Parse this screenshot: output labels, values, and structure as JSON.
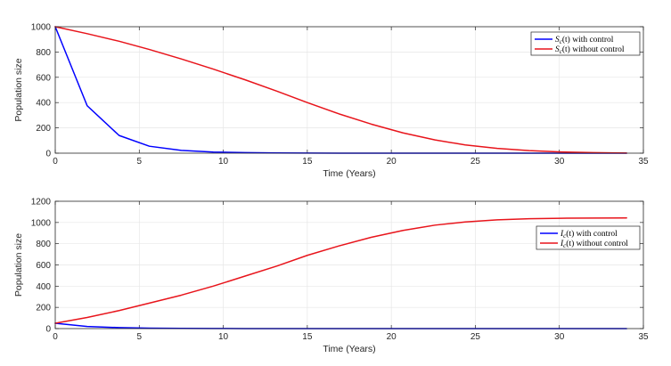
{
  "chart_data": [
    {
      "type": "line",
      "title": "",
      "xlabel": "Time (Years)",
      "ylabel": "Population size",
      "xlim": [
        0,
        35
      ],
      "ylim": [
        0,
        1000
      ],
      "xticks": [
        0,
        5,
        10,
        15,
        20,
        25,
        30,
        35
      ],
      "yticks": [
        0,
        200,
        400,
        600,
        800,
        1000
      ],
      "grid": true,
      "legend_position": "top-right",
      "series": [
        {
          "name": "S_c(t) with control",
          "legend_symbol": "S",
          "legend_subscript": "c",
          "legend_arg": "(t)",
          "legend_suffix": " with control",
          "color": "#0000ff",
          "x": [
            0,
            1.9,
            3.8,
            5.6,
            7.5,
            9.4,
            11.3,
            13.2,
            15.0,
            16.9,
            18.8,
            20.7,
            22.6,
            24.4,
            26.3,
            28.2,
            30.1,
            32.0,
            34.0
          ],
          "y": [
            1000,
            375,
            140,
            55,
            22,
            9,
            4,
            2,
            1,
            0,
            0,
            0,
            0,
            0,
            0,
            0,
            0,
            0,
            0
          ]
        },
        {
          "name": "S_c(t) without control",
          "legend_symbol": "S",
          "legend_subscript": "c",
          "legend_arg": "(t)",
          "legend_suffix": " without control",
          "color": "#e8141b",
          "x": [
            0,
            1.9,
            3.8,
            5.6,
            7.5,
            9.4,
            11.3,
            13.2,
            15.0,
            16.9,
            18.8,
            20.7,
            22.6,
            24.4,
            26.3,
            28.2,
            30.1,
            32.0,
            34.0
          ],
          "y": [
            1000,
            945,
            885,
            820,
            745,
            665,
            580,
            490,
            400,
            310,
            230,
            160,
            105,
            65,
            38,
            20,
            10,
            4,
            1
          ]
        }
      ]
    },
    {
      "type": "line",
      "title": "",
      "xlabel": "Time (Years)",
      "ylabel": "Population size",
      "xlim": [
        0,
        35
      ],
      "ylim": [
        0,
        1200
      ],
      "xticks": [
        0,
        5,
        10,
        15,
        20,
        25,
        30,
        35
      ],
      "yticks": [
        0,
        200,
        400,
        600,
        800,
        1000,
        1200
      ],
      "grid": true,
      "legend_position": "right",
      "series": [
        {
          "name": "I_c(t) with control",
          "legend_symbol": "I",
          "legend_subscript": "c",
          "legend_arg": "(t)",
          "legend_suffix": " with control",
          "color": "#0000ff",
          "x": [
            0,
            1.9,
            3.8,
            5.6,
            7.5,
            9.4,
            11.3,
            13.2,
            15.0,
            16.9,
            18.8,
            20.7,
            22.6,
            24.4,
            26.3,
            28.2,
            30.1,
            32.0,
            34.0
          ],
          "y": [
            50,
            20,
            9,
            4,
            2,
            1,
            0,
            0,
            0,
            0,
            0,
            0,
            0,
            0,
            0,
            0,
            0,
            0,
            0
          ]
        },
        {
          "name": "I_c(t) without control",
          "legend_symbol": "I",
          "legend_subscript": "c",
          "legend_arg": "(t)",
          "legend_suffix": " without control",
          "color": "#e8141b",
          "x": [
            0,
            1.9,
            3.8,
            5.6,
            7.5,
            9.4,
            11.3,
            13.2,
            15.0,
            16.9,
            18.8,
            20.7,
            22.6,
            24.4,
            26.3,
            28.2,
            30.1,
            32.0,
            34.0
          ],
          "y": [
            50,
            105,
            170,
            240,
            315,
            400,
            495,
            590,
            690,
            780,
            860,
            925,
            975,
            1005,
            1025,
            1035,
            1040,
            1042,
            1043
          ]
        }
      ]
    }
  ]
}
